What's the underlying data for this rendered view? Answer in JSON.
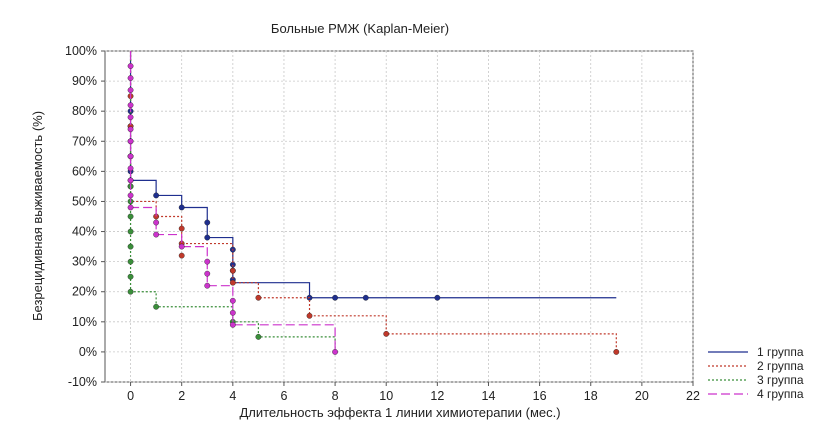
{
  "chart_data": {
    "type": "line",
    "subtype": "step",
    "title": "Больные РМЖ (Kaplan-Meier)",
    "xlabel": "Длительность эффекта 1 линии химиотерапии (мес.)",
    "ylabel": "Безрецидивная выживаемость (%)",
    "xlim": [
      -1,
      22
    ],
    "ylim": [
      -10,
      100
    ],
    "x_ticks": [
      0,
      2,
      4,
      6,
      8,
      10,
      12,
      14,
      16,
      18,
      20,
      22
    ],
    "y_ticks": [
      -10,
      0,
      10,
      20,
      30,
      40,
      50,
      60,
      70,
      80,
      90,
      100
    ],
    "y_tick_labels": [
      "-10%",
      "0%",
      "10%",
      "20%",
      "30%",
      "40%",
      "50%",
      "60%",
      "70%",
      "80%",
      "90%",
      "100%"
    ],
    "grid": true,
    "legend_position": "bottom-right",
    "series": [
      {
        "name": "1 группа",
        "color": "#1f2f8f",
        "dash": "solid",
        "steps": [
          [
            0,
            100
          ],
          [
            0,
            57
          ],
          [
            1,
            52
          ],
          [
            2,
            48
          ],
          [
            3,
            38
          ],
          [
            4,
            23
          ],
          [
            7,
            18
          ],
          [
            19,
            18
          ]
        ],
        "markers": [
          [
            0,
            80
          ],
          [
            0,
            75
          ],
          [
            0,
            70
          ],
          [
            0,
            65
          ],
          [
            0,
            60
          ],
          [
            0,
            57
          ],
          [
            1,
            52
          ],
          [
            2,
            48
          ],
          [
            3,
            43
          ],
          [
            3,
            38
          ],
          [
            4,
            34
          ],
          [
            4,
            29
          ],
          [
            4,
            27
          ],
          [
            4,
            24
          ],
          [
            7,
            18
          ],
          [
            8,
            18
          ],
          [
            9.2,
            18
          ],
          [
            12,
            18
          ]
        ]
      },
      {
        "name": "2 группа",
        "color": "#c0392b",
        "dash": "dotted",
        "steps": [
          [
            0,
            100
          ],
          [
            0,
            50
          ],
          [
            1,
            45
          ],
          [
            2,
            36
          ],
          [
            4,
            23
          ],
          [
            5,
            18
          ],
          [
            7,
            12
          ],
          [
            10,
            6
          ],
          [
            19,
            0
          ]
        ],
        "markers": [
          [
            0,
            85
          ],
          [
            0,
            75
          ],
          [
            0,
            65
          ],
          [
            0,
            55
          ],
          [
            1,
            45
          ],
          [
            2,
            41
          ],
          [
            2,
            36
          ],
          [
            2,
            32
          ],
          [
            4,
            27
          ],
          [
            4,
            23
          ],
          [
            5,
            18
          ],
          [
            7,
            12
          ],
          [
            10,
            6
          ],
          [
            19,
            0
          ]
        ]
      },
      {
        "name": "3 группа",
        "color": "#3a8f3a",
        "dash": "dotted",
        "steps": [
          [
            0,
            100
          ],
          [
            0,
            20
          ],
          [
            1,
            15
          ],
          [
            4,
            10
          ],
          [
            5,
            5
          ],
          [
            8,
            0
          ]
        ],
        "markers": [
          [
            0,
            55
          ],
          [
            0,
            50
          ],
          [
            0,
            45
          ],
          [
            0,
            40
          ],
          [
            0,
            35
          ],
          [
            0,
            30
          ],
          [
            0,
            25
          ],
          [
            0,
            20
          ],
          [
            1,
            15
          ],
          [
            4,
            10
          ],
          [
            5,
            5
          ]
        ]
      },
      {
        "name": "4 группа",
        "color": "#cc33cc",
        "dash": "longdash",
        "steps": [
          [
            0,
            100
          ],
          [
            0,
            48
          ],
          [
            1,
            39
          ],
          [
            2,
            35
          ],
          [
            3,
            22
          ],
          [
            4,
            9
          ],
          [
            8,
            0
          ]
        ],
        "markers": [
          [
            0,
            95
          ],
          [
            0,
            91
          ],
          [
            0,
            87
          ],
          [
            0,
            82
          ],
          [
            0,
            78
          ],
          [
            0,
            74
          ],
          [
            0,
            70
          ],
          [
            0,
            65
          ],
          [
            0,
            61
          ],
          [
            0,
            57
          ],
          [
            0,
            52
          ],
          [
            0,
            48
          ],
          [
            1,
            43
          ],
          [
            1,
            39
          ],
          [
            2,
            35
          ],
          [
            3,
            30
          ],
          [
            3,
            26
          ],
          [
            3,
            22
          ],
          [
            4,
            17
          ],
          [
            4,
            13
          ],
          [
            4,
            9
          ],
          [
            8,
            0
          ]
        ]
      }
    ]
  }
}
